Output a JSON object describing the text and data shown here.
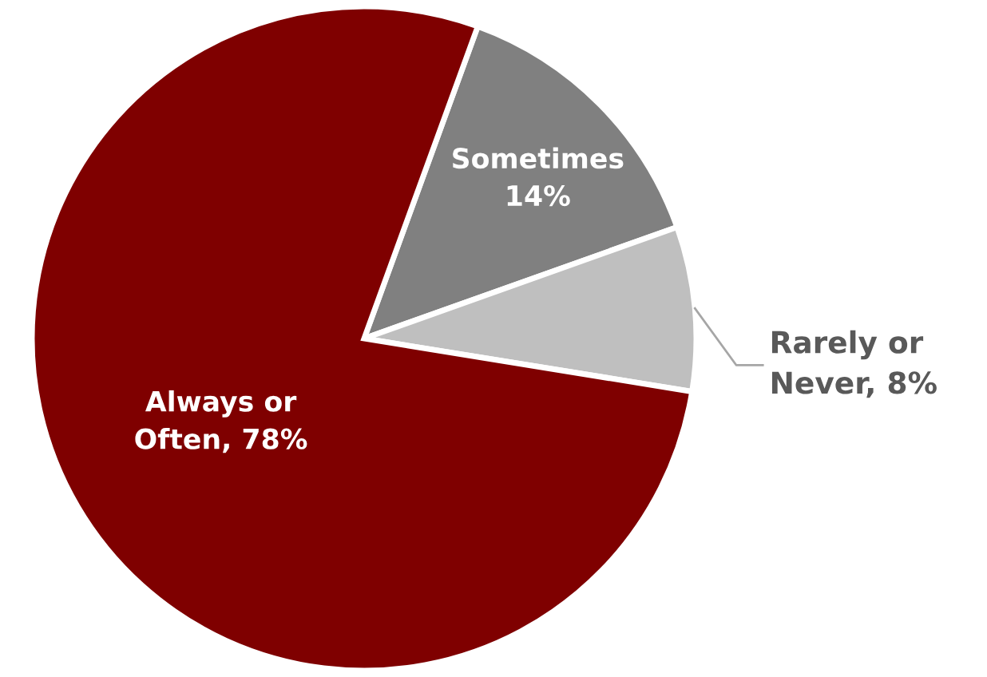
{
  "chart_data": {
    "type": "pie",
    "categories": [
      "Sometimes",
      "Rarely or\nNever",
      "Always or\nOften"
    ],
    "values": [
      14,
      8,
      78
    ],
    "colors": [
      "#808080",
      "#bfbfbf",
      "#7f0000"
    ],
    "value_labels": [
      "14%",
      "8%",
      "78%"
    ],
    "legend": false
  }
}
